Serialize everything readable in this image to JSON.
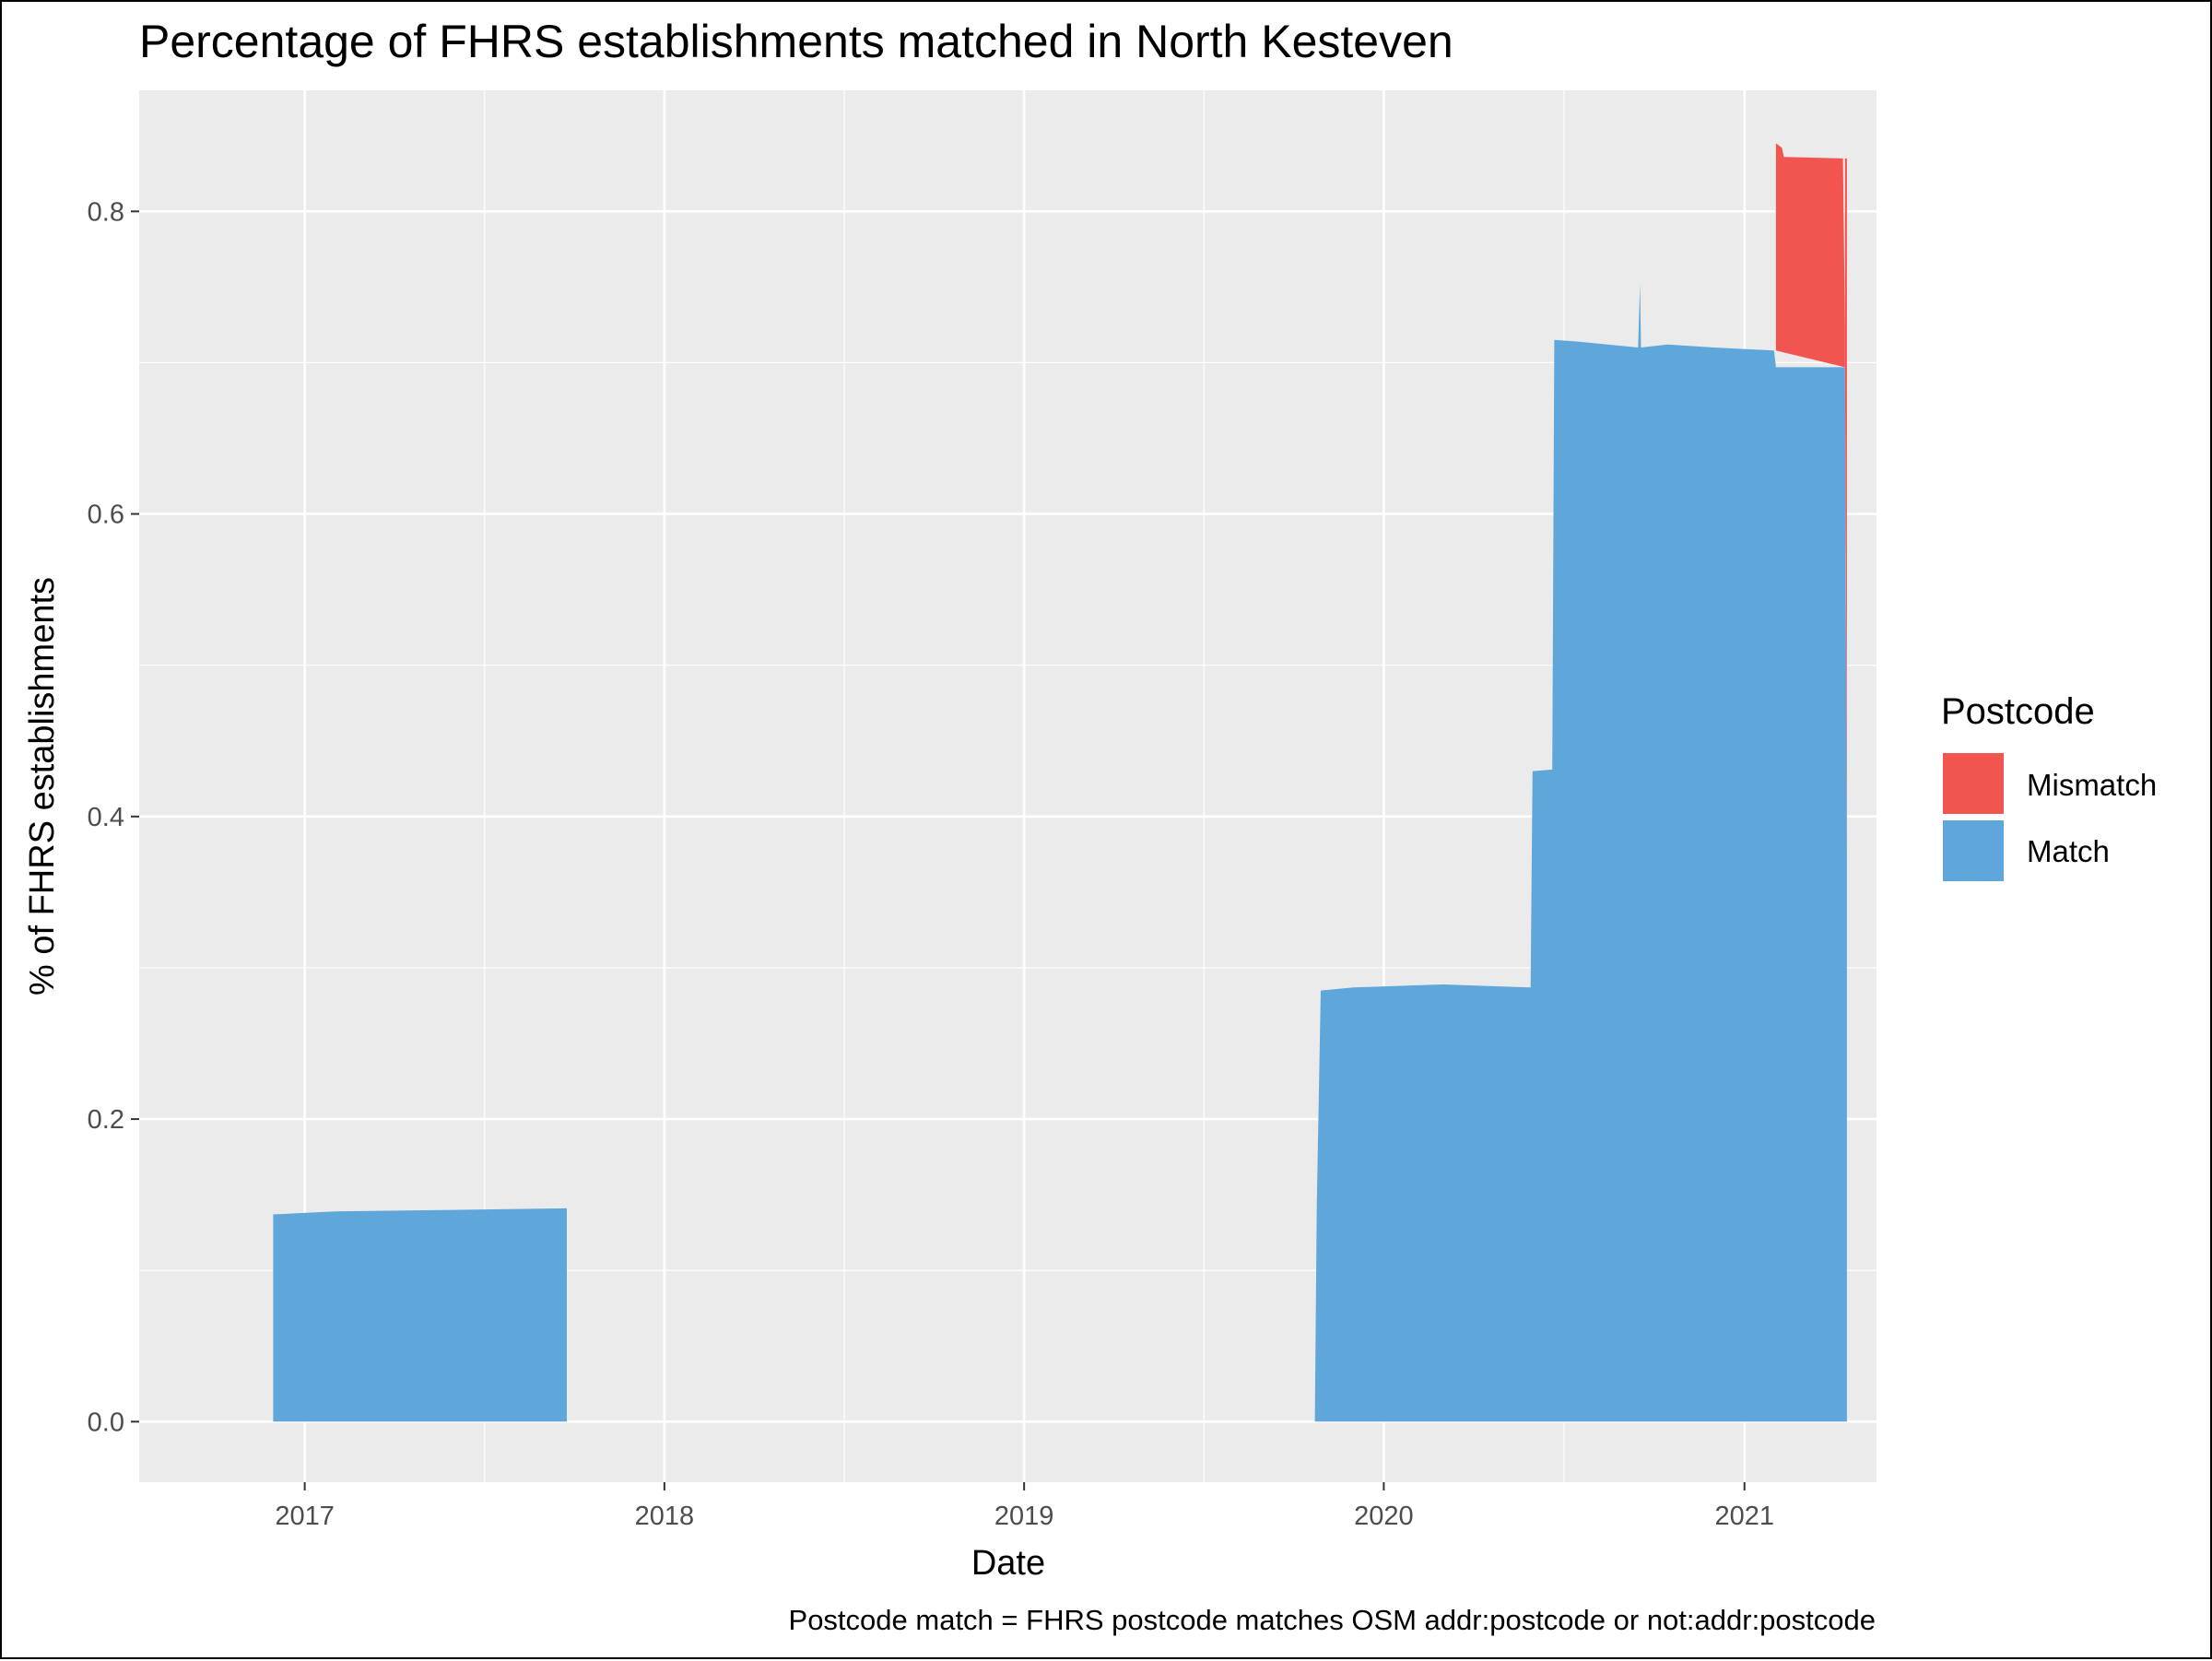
{
  "chart_data": {
    "type": "area",
    "title": "Percentage of FHRS establishments matched in North Kesteven",
    "xlabel": "Date",
    "ylabel": "% of FHRS establishments",
    "caption": "Postcode match = FHRS postcode matches OSM addr:postcode or not:addr:postcode",
    "x_ticks": [
      "2017",
      "2018",
      "2019",
      "2020",
      "2021"
    ],
    "y_ticks": [
      "0.0",
      "0.2",
      "0.4",
      "0.6",
      "0.8"
    ],
    "xlim": [
      "2016-07-17",
      "2021-05-15"
    ],
    "ylim": [
      -0.04,
      0.88
    ],
    "grid": true,
    "legend": {
      "title": "Postcode",
      "position": "right",
      "entries": [
        {
          "name": "Mismatch",
          "color": "#f2544f"
        },
        {
          "name": "Match",
          "color": "#5fa6db"
        }
      ]
    },
    "series": [
      {
        "name": "Match",
        "color": "#5fa6db",
        "points": [
          [
            "2016-11-30",
            0.0
          ],
          [
            "2016-11-30",
            0.137
          ],
          [
            "2017-02-01",
            0.139
          ],
          [
            "2017-06-01",
            0.14
          ],
          [
            "2017-09-24",
            0.141
          ],
          [
            "2017-09-24",
            0.0
          ],
          [
            "2019-10-23",
            0.0
          ],
          [
            "2019-10-25",
            0.143
          ],
          [
            "2019-10-29",
            0.285
          ],
          [
            "2019-12-01",
            0.287
          ],
          [
            "2020-03-01",
            0.289
          ],
          [
            "2020-05-29",
            0.287
          ],
          [
            "2020-05-31",
            0.43
          ],
          [
            "2020-06-20",
            0.431
          ],
          [
            "2020-06-22",
            0.715
          ],
          [
            "2020-07-15",
            0.714
          ],
          [
            "2020-08-15",
            0.712
          ],
          [
            "2020-09-15",
            0.71
          ],
          [
            "2020-09-17",
            0.752
          ],
          [
            "2020-09-18",
            0.71
          ],
          [
            "2020-10-15",
            0.712
          ],
          [
            "2020-12-01",
            0.71
          ],
          [
            "2021-01-31",
            0.708
          ],
          [
            "2021-02-02",
            0.697
          ],
          [
            "2021-04-13",
            0.697
          ],
          [
            "2021-04-15",
            0.375
          ],
          [
            "2021-04-15",
            0.0
          ]
        ]
      },
      {
        "name": "Mismatch",
        "color": "#f2544f",
        "points": [
          [
            "2021-02-02",
            0.708
          ],
          [
            "2021-02-02",
            0.845
          ],
          [
            "2021-02-08",
            0.842
          ],
          [
            "2021-02-10",
            0.836
          ],
          [
            "2021-04-11",
            0.835
          ],
          [
            "2021-04-13",
            0.722
          ],
          [
            "2021-04-13",
            0.697
          ]
        ]
      },
      {
        "name": "Mismatch",
        "color": "#f2544f",
        "points": [
          [
            "2021-04-13",
            0.722
          ],
          [
            "2021-04-13",
            0.835
          ],
          [
            "2021-04-15",
            0.835
          ],
          [
            "2021-04-15",
            0.375
          ],
          [
            "2021-04-14",
            0.56
          ],
          [
            "2021-04-13",
            0.697
          ]
        ]
      }
    ]
  }
}
